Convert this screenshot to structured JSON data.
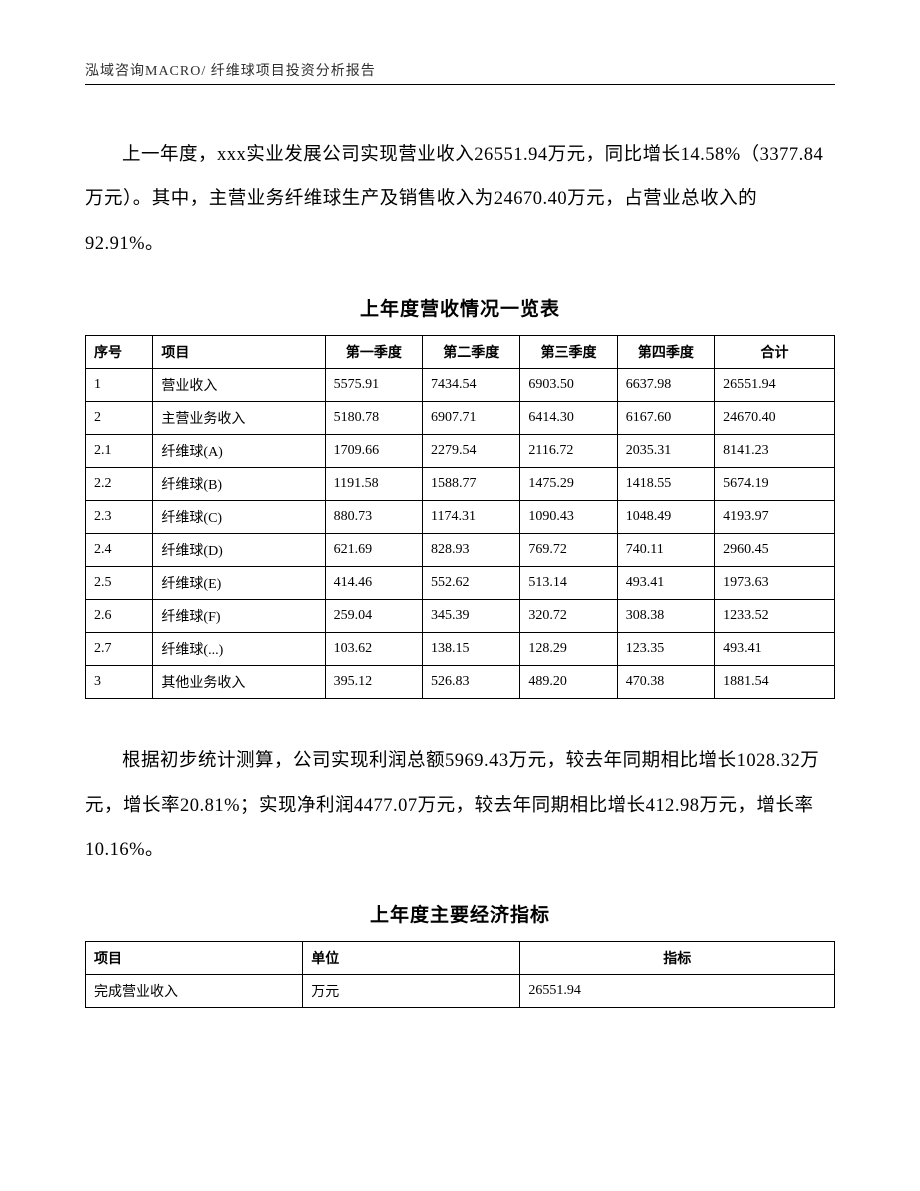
{
  "header": "泓域咨询MACRO/    纤维球项目投资分析报告",
  "para1": "上一年度，xxx实业发展公司实现营业收入26551.94万元，同比增长14.58%（3377.84万元）。其中，主营业务纤维球生产及销售收入为24670.40万元，占营业总收入的92.91%。",
  "table1_title": "上年度营收情况一览表",
  "table1": {
    "columns": [
      "序号",
      "项目",
      "第一季度",
      "第二季度",
      "第三季度",
      "第四季度",
      "合计"
    ],
    "rows": [
      [
        "1",
        "营业收入",
        "5575.91",
        "7434.54",
        "6903.50",
        "6637.98",
        "26551.94"
      ],
      [
        "2",
        "主营业务收入",
        "5180.78",
        "6907.71",
        "6414.30",
        "6167.60",
        "24670.40"
      ],
      [
        "2.1",
        "纤维球(A)",
        "1709.66",
        "2279.54",
        "2116.72",
        "2035.31",
        "8141.23"
      ],
      [
        "2.2",
        "纤维球(B)",
        "1191.58",
        "1588.77",
        "1475.29",
        "1418.55",
        "5674.19"
      ],
      [
        "2.3",
        "纤维球(C)",
        "880.73",
        "1174.31",
        "1090.43",
        "1048.49",
        "4193.97"
      ],
      [
        "2.4",
        "纤维球(D)",
        "621.69",
        "828.93",
        "769.72",
        "740.11",
        "2960.45"
      ],
      [
        "2.5",
        "纤维球(E)",
        "414.46",
        "552.62",
        "513.14",
        "493.41",
        "1973.63"
      ],
      [
        "2.6",
        "纤维球(F)",
        "259.04",
        "345.39",
        "320.72",
        "308.38",
        "1233.52"
      ],
      [
        "2.7",
        "纤维球(...)",
        "103.62",
        "138.15",
        "128.29",
        "123.35",
        "493.41"
      ],
      [
        "3",
        "其他业务收入",
        "395.12",
        "526.83",
        "489.20",
        "470.38",
        "1881.54"
      ]
    ]
  },
  "para2": "根据初步统计测算，公司实现利润总额5969.43万元，较去年同期相比增长1028.32万元，增长率20.81%；实现净利润4477.07万元，较去年同期相比增长412.98万元，增长率10.16%。",
  "table2_title": "上年度主要经济指标",
  "table2": {
    "columns": [
      "项目",
      "单位",
      "指标"
    ],
    "rows": [
      [
        "完成营业收入",
        "万元",
        "26551.94"
      ]
    ]
  }
}
